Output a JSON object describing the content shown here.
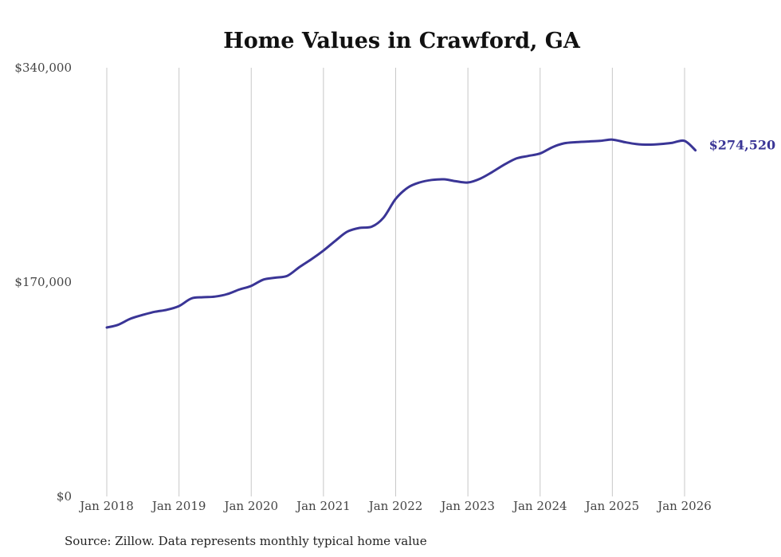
{
  "chart_data": {
    "type": "line",
    "title": "Home Values in Crawford, GA",
    "xlabel": "",
    "ylabel": "",
    "ylim": [
      0,
      340000
    ],
    "y_ticks": [
      {
        "value": 0,
        "label": "$0"
      },
      {
        "value": 170000,
        "label": "$170,000"
      },
      {
        "value": 340000,
        "label": "$340,000"
      }
    ],
    "x_ticks": [
      {
        "value": 2018,
        "label": "Jan 2018"
      },
      {
        "value": 2019,
        "label": "Jan 2019"
      },
      {
        "value": 2020,
        "label": "Jan 2020"
      },
      {
        "value": 2021,
        "label": "Jan 2021"
      },
      {
        "value": 2022,
        "label": "Jan 2022"
      },
      {
        "value": 2023,
        "label": "Jan 2023"
      },
      {
        "value": 2024,
        "label": "Jan 2024"
      },
      {
        "value": 2025,
        "label": "Jan 2025"
      },
      {
        "value": 2026,
        "label": "Jan 2026"
      }
    ],
    "xlim": [
      2018,
      2026.2
    ],
    "grid": "vertical",
    "series": [
      {
        "name": "Typical home value",
        "color": "#3a3596",
        "end_label": "$274,520",
        "points": [
          [
            2018.0,
            134000
          ],
          [
            2018.15,
            136000
          ],
          [
            2018.33,
            141000
          ],
          [
            2018.5,
            144000
          ],
          [
            2018.67,
            146500
          ],
          [
            2018.83,
            148000
          ],
          [
            2019.0,
            151000
          ],
          [
            2019.17,
            157000
          ],
          [
            2019.33,
            158000
          ],
          [
            2019.5,
            158500
          ],
          [
            2019.67,
            160500
          ],
          [
            2019.83,
            164000
          ],
          [
            2020.0,
            167000
          ],
          [
            2020.17,
            172000
          ],
          [
            2020.33,
            173500
          ],
          [
            2020.5,
            175000
          ],
          [
            2020.67,
            182000
          ],
          [
            2020.83,
            188000
          ],
          [
            2021.0,
            195000
          ],
          [
            2021.17,
            203000
          ],
          [
            2021.33,
            210000
          ],
          [
            2021.5,
            213000
          ],
          [
            2021.67,
            214000
          ],
          [
            2021.83,
            221000
          ],
          [
            2022.0,
            236000
          ],
          [
            2022.17,
            245000
          ],
          [
            2022.33,
            249000
          ],
          [
            2022.5,
            251000
          ],
          [
            2022.67,
            251500
          ],
          [
            2022.83,
            250000
          ],
          [
            2023.0,
            249000
          ],
          [
            2023.17,
            252000
          ],
          [
            2023.33,
            257000
          ],
          [
            2023.5,
            263000
          ],
          [
            2023.67,
            268000
          ],
          [
            2023.83,
            270000
          ],
          [
            2024.0,
            272000
          ],
          [
            2024.17,
            277000
          ],
          [
            2024.33,
            280000
          ],
          [
            2024.5,
            281000
          ],
          [
            2024.67,
            281500
          ],
          [
            2024.83,
            282000
          ],
          [
            2025.0,
            283000
          ],
          [
            2025.17,
            281000
          ],
          [
            2025.33,
            279500
          ],
          [
            2025.5,
            279000
          ],
          [
            2025.67,
            279500
          ],
          [
            2025.83,
            280500
          ],
          [
            2026.0,
            282000
          ],
          [
            2026.15,
            274520
          ]
        ]
      }
    ],
    "source": "Source: Zillow. Data represents monthly typical home value"
  }
}
